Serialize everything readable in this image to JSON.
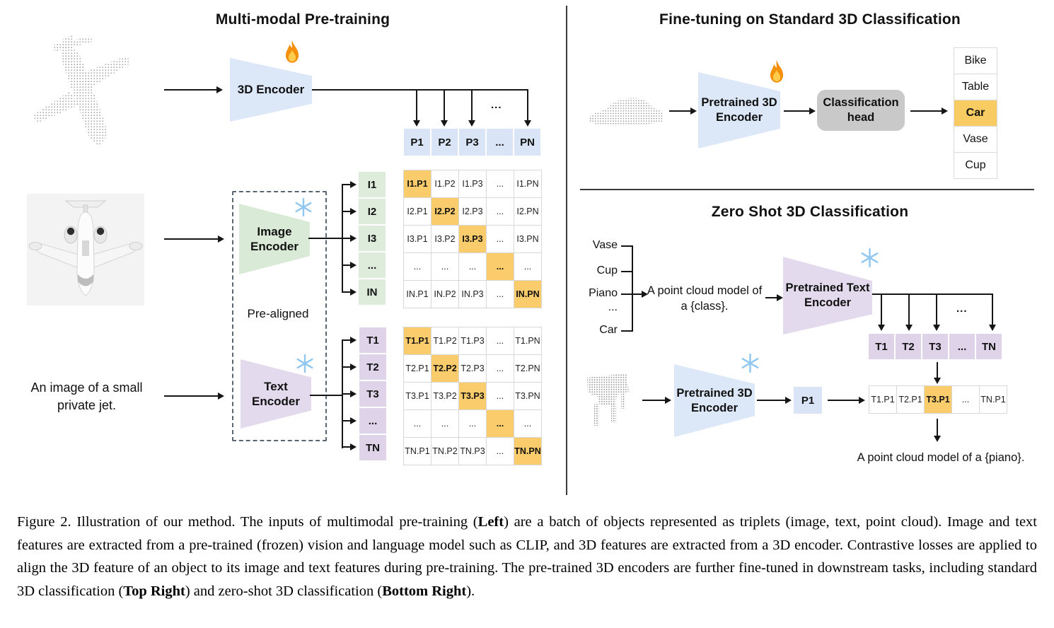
{
  "left": {
    "title": "Multi-modal Pre-training",
    "encoder_3d_label": "3D Encoder",
    "p_row": [
      "P1",
      "P2",
      "P3",
      "...",
      "PN"
    ],
    "image_encoder_label": "Image\nEncoder",
    "text_encoder_label": "Text\nEncoder",
    "pre_aligned_label": "Pre-aligned",
    "text_input": [
      "An image of a small",
      "private jet."
    ],
    "i_col": [
      "I1",
      "I2",
      "I3",
      "...",
      "IN"
    ],
    "t_col": [
      "T1",
      "T2",
      "T3",
      "...",
      "TN"
    ],
    "i_matrix": [
      [
        "I1.P1",
        "I1.P2",
        "I1.P3",
        "...",
        "I1.PN"
      ],
      [
        "I2.P1",
        "I2.P2",
        "I2.P3",
        "...",
        "I2.PN"
      ],
      [
        "I3.P1",
        "I3.P2",
        "I3.P3",
        "...",
        "I3.PN"
      ],
      [
        "...",
        "...",
        "...",
        "...",
        "..."
      ],
      [
        "IN.P1",
        "IN.P2",
        "IN.P3",
        "...",
        "IN.PN"
      ]
    ],
    "t_matrix": [
      [
        "T1.P1",
        "T1.P2",
        "T1.P3",
        "...",
        "T1.PN"
      ],
      [
        "T2.P1",
        "T2.P2",
        "T2.P3",
        "...",
        "T2.PN"
      ],
      [
        "T3.P1",
        "T3.P2",
        "T3.P3",
        "...",
        "T3.PN"
      ],
      [
        "...",
        "...",
        "...",
        "...",
        "..."
      ],
      [
        "TN.P1",
        "TN.P2",
        "TN.P3",
        "...",
        "TN.PN"
      ]
    ],
    "ellipsis": "..."
  },
  "right_top": {
    "title": "Fine-tuning on Standard 3D Classification",
    "encoder_label": "Pretrained 3D\nEncoder",
    "head_label": "Classification\nhead",
    "classes": [
      "Bike",
      "Table",
      "Car",
      "Vase",
      "Cup"
    ],
    "highlighted_class": "Car"
  },
  "right_bottom": {
    "title": "Zero Shot 3D Classification",
    "class_labels": [
      "Vase",
      "Cup",
      "Piano",
      "...",
      "Car"
    ],
    "prompt": [
      "A point cloud model of",
      "a {class}."
    ],
    "text_encoder_label": "Pretrained Text\nEncoder",
    "encoder_3d_label": "Pretrained 3D\nEncoder",
    "t_row": [
      "T1",
      "T2",
      "T3",
      "...",
      "TN"
    ],
    "p1_label": "P1",
    "sim_row": [
      "T1.P1",
      "T2.P1",
      "T3.P1",
      "...",
      "TN.P1"
    ],
    "result_text": "A point cloud model of a {piano}.",
    "ellipsis": "..."
  },
  "caption": {
    "segments": [
      {
        "t": "Figure 2. Illustration of our method.  The inputs of multimodal pre-training (",
        "b": false
      },
      {
        "t": "Left",
        "b": true
      },
      {
        "t": ") are a batch of objects represented as triplets (image, text, point cloud).  Image and text features are extracted from a pre-trained (frozen) vision and language model such as CLIP, and 3D features are extracted from a 3D encoder.  Contrastive losses are applied to align the 3D feature of an object to its image and text features during pre-training.  The pre-trained 3D encoders are further fine-tuned in downstream tasks, including standard 3D classification (",
        "b": false
      },
      {
        "t": "Top Right",
        "b": true
      },
      {
        "t": ") and zero-shot 3D classification (",
        "b": false
      },
      {
        "t": "Bottom Right",
        "b": true
      },
      {
        "t": ").",
        "b": false
      }
    ]
  },
  "colors": {
    "highlight_orange": "#FACC6B",
    "cell_blue": "#D9E5F6",
    "cell_green": "#DDECDB",
    "cell_purple": "#DED3E9",
    "encoder_blue": "#DCE7F8",
    "encoder_green": "#D9EAD6",
    "encoder_purple": "#E4DAEE",
    "head_gray": "#C9C9C9"
  }
}
